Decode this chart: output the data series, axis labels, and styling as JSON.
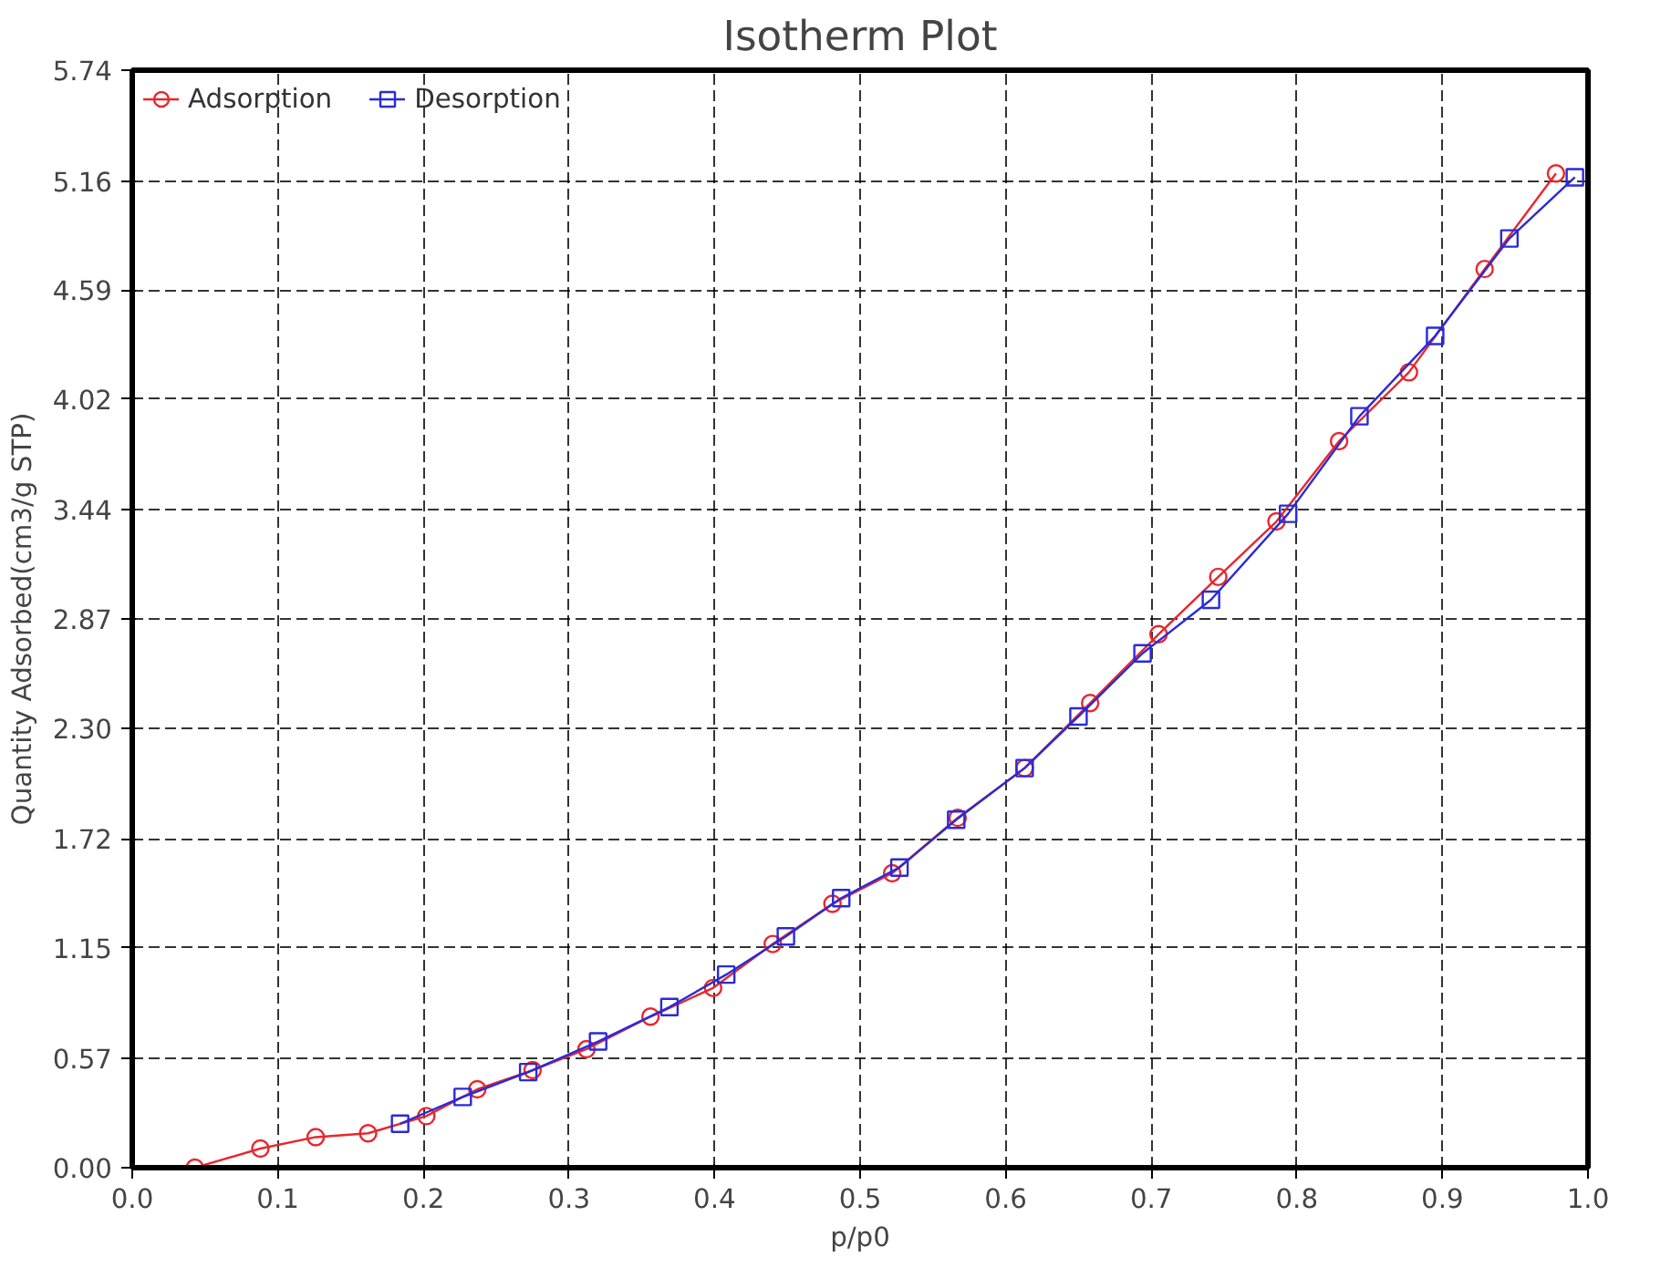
{
  "chart_data": {
    "type": "line",
    "title": "Isotherm Plot",
    "xlabel": "p/p0",
    "ylabel": "Quantity Adsorbed(cm3/g STP)",
    "xlim": [
      0,
      1
    ],
    "ylim": [
      0,
      5.74
    ],
    "xticks": [
      {
        "value": 0,
        "label": "0.0"
      },
      {
        "value": 0.1,
        "label": "0.1"
      },
      {
        "value": 0.2,
        "label": "0.2"
      },
      {
        "value": 0.3,
        "label": "0.3"
      },
      {
        "value": 0.4,
        "label": "0.4"
      },
      {
        "value": 0.5,
        "label": "0.5"
      },
      {
        "value": 0.6,
        "label": "0.6"
      },
      {
        "value": 0.7,
        "label": "0.7"
      },
      {
        "value": 0.8,
        "label": "0.8"
      },
      {
        "value": 0.9,
        "label": "0.9"
      },
      {
        "value": 1,
        "label": "1.0"
      }
    ],
    "yticks": [
      {
        "value": 0,
        "label": "0.00"
      },
      0.57,
      1.15,
      1.72,
      {
        "value": 2.3,
        "label": "2.30"
      },
      2.87,
      3.44,
      4.02,
      4.59,
      5.16,
      5.74
    ],
    "grid": true,
    "legend": "top left",
    "line_style": "solid",
    "series": [
      {
        "name": "Adsorption",
        "color": "#e8272d",
        "marker": "circle",
        "x": [
          0.043,
          0.088,
          0.126,
          0.162,
          0.202,
          0.237,
          0.275,
          0.312,
          0.356,
          0.399,
          0.44,
          0.481,
          0.522,
          0.567,
          0.613,
          0.658,
          0.705,
          0.746,
          0.786,
          0.829,
          0.877,
          0.929,
          0.978
        ],
        "values": [
          0.0,
          0.1,
          0.16,
          0.18,
          0.27,
          0.41,
          0.51,
          0.62,
          0.79,
          0.94,
          1.17,
          1.38,
          1.54,
          1.83,
          2.09,
          2.43,
          2.79,
          3.09,
          3.38,
          3.8,
          4.16,
          4.7,
          5.2
        ]
      },
      {
        "name": "Desorption",
        "color": "#2a2ad8",
        "marker": "square",
        "x": [
          0.991,
          0.946,
          0.895,
          0.843,
          0.794,
          0.741,
          0.694,
          0.65,
          0.613,
          0.566,
          0.527,
          0.487,
          0.449,
          0.408,
          0.369,
          0.32,
          0.272,
          0.227,
          0.184
        ],
        "values": [
          5.18,
          4.86,
          4.35,
          3.93,
          3.42,
          2.97,
          2.69,
          2.36,
          2.09,
          1.82,
          1.57,
          1.41,
          1.21,
          1.01,
          0.84,
          0.66,
          0.5,
          0.37,
          0.23
        ]
      }
    ]
  }
}
